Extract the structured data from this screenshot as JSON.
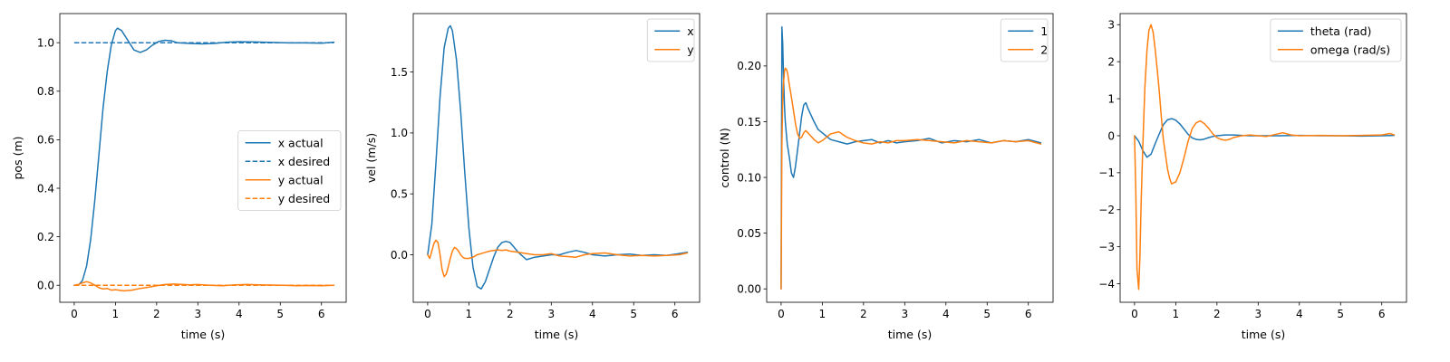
{
  "chart_data": [
    {
      "type": "line",
      "xlabel": "time (s)",
      "ylabel": "pos (m)",
      "xlim": [
        -0.35,
        6.6
      ],
      "ylim": [
        -0.07,
        1.12
      ],
      "xticks": [
        0,
        1,
        2,
        3,
        4,
        5,
        6
      ],
      "yticks": [
        0.0,
        0.2,
        0.4,
        0.6,
        0.8,
        1.0
      ],
      "ytick_labels": [
        "0.0",
        "0.2",
        "0.4",
        "0.6",
        "0.8",
        "1.0"
      ],
      "legend": "center-right",
      "series": [
        {
          "name": "x actual",
          "color": "#1f77b4",
          "dash": "solid",
          "x": [
            0,
            0.1,
            0.2,
            0.3,
            0.4,
            0.5,
            0.6,
            0.7,
            0.8,
            0.9,
            1.0,
            1.05,
            1.15,
            1.3,
            1.45,
            1.6,
            1.75,
            1.9,
            2.05,
            2.2,
            2.35,
            2.5,
            2.8,
            3.1,
            3.4,
            3.7,
            4.0,
            4.4,
            4.8,
            5.2,
            5.6,
            6.0,
            6.3
          ],
          "y": [
            0.0,
            0.0,
            0.02,
            0.08,
            0.19,
            0.35,
            0.54,
            0.73,
            0.88,
            0.99,
            1.05,
            1.06,
            1.05,
            1.01,
            0.97,
            0.96,
            0.97,
            0.99,
            1.005,
            1.01,
            1.008,
            1.0,
            0.997,
            0.995,
            0.997,
            1.002,
            1.004,
            1.003,
            1.001,
            0.999,
            0.999,
            0.998,
            1.002
          ]
        },
        {
          "name": "x desired",
          "color": "#1f77b4",
          "dash": "dashed",
          "x": [
            0,
            6.3
          ],
          "y": [
            1.0,
            1.0
          ]
        },
        {
          "name": "y actual",
          "color": "#ff7f0e",
          "dash": "solid",
          "x": [
            0,
            0.1,
            0.2,
            0.3,
            0.4,
            0.5,
            0.6,
            0.7,
            0.8,
            0.9,
            1.0,
            1.2,
            1.4,
            1.6,
            1.8,
            2.0,
            2.2,
            2.4,
            2.6,
            2.8,
            3.0,
            3.3,
            3.6,
            3.9,
            4.2,
            4.5,
            4.8,
            5.1,
            5.4,
            5.7,
            6.0,
            6.3
          ],
          "y": [
            0.0,
            0.003,
            0.01,
            0.015,
            0.01,
            0.0,
            -0.01,
            -0.015,
            -0.013,
            -0.02,
            -0.018,
            -0.023,
            -0.02,
            -0.013,
            -0.008,
            -0.002,
            0.003,
            0.005,
            0.004,
            0.002,
            0.003,
            0.0,
            -0.002,
            0.002,
            0.003,
            0.002,
            0.001,
            0.0,
            -0.002,
            -0.001,
            -0.002,
            0.0
          ]
        },
        {
          "name": "y desired",
          "color": "#ff7f0e",
          "dash": "dashed",
          "x": [
            0,
            6.3
          ],
          "y": [
            0.0,
            0.0
          ]
        }
      ]
    },
    {
      "type": "line",
      "xlabel": "time (s)",
      "ylabel": "vel (m/s)",
      "xlim": [
        -0.35,
        6.6
      ],
      "ylim": [
        -0.39,
        1.98
      ],
      "xticks": [
        0,
        1,
        2,
        3,
        4,
        5,
        6
      ],
      "yticks": [
        0.0,
        0.5,
        1.0,
        1.5
      ],
      "ytick_labels": [
        "0.0",
        "0.5",
        "1.0",
        "1.5"
      ],
      "legend": "top-right",
      "series": [
        {
          "name": "x",
          "color": "#1f77b4",
          "dash": "solid",
          "x": [
            0,
            0.1,
            0.2,
            0.3,
            0.4,
            0.5,
            0.55,
            0.6,
            0.7,
            0.8,
            0.9,
            1.0,
            1.1,
            1.2,
            1.3,
            1.4,
            1.5,
            1.6,
            1.7,
            1.8,
            1.9,
            2.0,
            2.1,
            2.2,
            2.4,
            2.6,
            2.8,
            3.0,
            3.2,
            3.4,
            3.6,
            3.8,
            4.0,
            4.3,
            4.6,
            4.9,
            5.2,
            5.5,
            5.8,
            6.1,
            6.3
          ],
          "y": [
            0.0,
            0.25,
            0.75,
            1.3,
            1.7,
            1.86,
            1.88,
            1.84,
            1.6,
            1.18,
            0.68,
            0.22,
            -0.1,
            -0.26,
            -0.28,
            -0.22,
            -0.12,
            -0.02,
            0.06,
            0.1,
            0.11,
            0.1,
            0.06,
            0.02,
            -0.04,
            -0.02,
            -0.01,
            0.0,
            0.0,
            0.02,
            0.035,
            0.02,
            0.0,
            -0.01,
            0.0,
            0.005,
            -0.005,
            0.0,
            -0.005,
            0.01,
            0.02
          ]
        },
        {
          "name": "y",
          "color": "#ff7f0e",
          "dash": "solid",
          "x": [
            0,
            0.05,
            0.1,
            0.15,
            0.2,
            0.25,
            0.3,
            0.35,
            0.4,
            0.45,
            0.5,
            0.55,
            0.6,
            0.65,
            0.7,
            0.75,
            0.8,
            0.85,
            0.9,
            1.0,
            1.1,
            1.2,
            1.3,
            1.4,
            1.5,
            1.6,
            1.7,
            1.8,
            1.9,
            2.0,
            2.2,
            2.4,
            2.6,
            2.8,
            3.0,
            3.2,
            3.4,
            3.6,
            3.8,
            4.0,
            4.3,
            4.6,
            4.9,
            5.2,
            5.5,
            5.8,
            6.1,
            6.3
          ],
          "y": [
            0.0,
            -0.03,
            0.03,
            0.09,
            0.12,
            0.1,
            0.0,
            -0.12,
            -0.18,
            -0.16,
            -0.1,
            -0.03,
            0.03,
            0.06,
            0.05,
            0.03,
            0.0,
            -0.02,
            -0.03,
            -0.03,
            -0.02,
            0.0,
            0.01,
            0.02,
            0.03,
            0.035,
            0.04,
            0.035,
            0.04,
            0.03,
            0.02,
            0.01,
            0.0,
            0.0,
            0.01,
            -0.01,
            -0.015,
            -0.02,
            0.0,
            0.01,
            0.015,
            0.0,
            -0.01,
            -0.005,
            -0.01,
            -0.005,
            0.0,
            0.015
          ]
        }
      ]
    },
    {
      "type": "line",
      "xlabel": "time (s)",
      "ylabel": "control (N)",
      "xlim": [
        -0.35,
        6.6
      ],
      "ylim": [
        -0.012,
        0.247
      ],
      "xticks": [
        0,
        1,
        2,
        3,
        4,
        5,
        6
      ],
      "yticks": [
        0.0,
        0.05,
        0.1,
        0.15,
        0.2
      ],
      "ytick_labels": [
        "0.00",
        "0.05",
        "0.10",
        "0.15",
        "0.20"
      ],
      "legend": "top-right",
      "series": [
        {
          "name": "1",
          "color": "#1f77b4",
          "dash": "solid",
          "x": [
            0,
            0.02,
            0.04,
            0.06,
            0.08,
            0.1,
            0.15,
            0.2,
            0.25,
            0.3,
            0.35,
            0.4,
            0.45,
            0.5,
            0.55,
            0.6,
            0.65,
            0.7,
            0.8,
            0.9,
            1.0,
            1.1,
            1.2,
            1.4,
            1.6,
            1.8,
            2.0,
            2.2,
            2.4,
            2.6,
            2.8,
            3.0,
            3.3,
            3.6,
            3.9,
            4.2,
            4.5,
            4.8,
            5.1,
            5.4,
            5.7,
            6.0,
            6.3
          ],
          "y": [
            0.0,
            0.235,
            0.22,
            0.19,
            0.165,
            0.15,
            0.13,
            0.118,
            0.104,
            0.1,
            0.11,
            0.125,
            0.14,
            0.155,
            0.165,
            0.167,
            0.162,
            0.158,
            0.15,
            0.143,
            0.14,
            0.137,
            0.134,
            0.132,
            0.13,
            0.132,
            0.133,
            0.134,
            0.131,
            0.133,
            0.131,
            0.132,
            0.133,
            0.135,
            0.131,
            0.133,
            0.132,
            0.134,
            0.131,
            0.133,
            0.132,
            0.134,
            0.131
          ]
        },
        {
          "name": "2",
          "color": "#ff7f0e",
          "dash": "solid",
          "x": [
            0,
            0.02,
            0.04,
            0.06,
            0.08,
            0.1,
            0.13,
            0.16,
            0.2,
            0.25,
            0.3,
            0.35,
            0.4,
            0.45,
            0.5,
            0.55,
            0.6,
            0.7,
            0.8,
            0.9,
            1.0,
            1.1,
            1.2,
            1.3,
            1.4,
            1.6,
            1.8,
            2.0,
            2.2,
            2.4,
            2.6,
            2.8,
            3.0,
            3.3,
            3.6,
            3.9,
            4.2,
            4.5,
            4.8,
            5.1,
            5.4,
            5.7,
            6.0,
            6.3
          ],
          "y": [
            0.0,
            0.13,
            0.17,
            0.185,
            0.195,
            0.198,
            0.197,
            0.193,
            0.183,
            0.172,
            0.16,
            0.148,
            0.139,
            0.135,
            0.136,
            0.14,
            0.142,
            0.138,
            0.134,
            0.131,
            0.133,
            0.136,
            0.139,
            0.14,
            0.141,
            0.136,
            0.133,
            0.131,
            0.13,
            0.132,
            0.131,
            0.133,
            0.133,
            0.134,
            0.133,
            0.132,
            0.131,
            0.133,
            0.132,
            0.131,
            0.133,
            0.132,
            0.133,
            0.13
          ]
        }
      ]
    },
    {
      "type": "line",
      "xlabel": "time (s)",
      "ylabel": "",
      "xlim": [
        -0.35,
        6.6
      ],
      "ylim": [
        -4.5,
        3.3
      ],
      "xticks": [
        0,
        1,
        2,
        3,
        4,
        5,
        6
      ],
      "yticks": [
        -4,
        -3,
        -2,
        -1,
        0,
        1,
        2,
        3
      ],
      "ytick_labels": [
        "−4",
        "−3",
        "−2",
        "−1",
        "0",
        "1",
        "2",
        "3"
      ],
      "legend": "top-right",
      "series": [
        {
          "name": "theta (rad)",
          "color": "#1f77b4",
          "dash": "solid",
          "x": [
            0,
            0.1,
            0.2,
            0.3,
            0.4,
            0.5,
            0.6,
            0.7,
            0.8,
            0.9,
            1.0,
            1.1,
            1.2,
            1.3,
            1.4,
            1.5,
            1.6,
            1.7,
            1.8,
            1.9,
            2.0,
            2.2,
            2.4,
            2.6,
            2.8,
            3.0,
            3.5,
            4.0,
            4.5,
            5.0,
            5.5,
            6.0,
            6.3
          ],
          "y": [
            0.0,
            -0.15,
            -0.4,
            -0.58,
            -0.5,
            -0.22,
            0.05,
            0.3,
            0.43,
            0.46,
            0.42,
            0.32,
            0.18,
            0.04,
            -0.06,
            -0.1,
            -0.11,
            -0.09,
            -0.05,
            -0.02,
            0.0,
            0.02,
            0.02,
            0.01,
            0.0,
            0.0,
            0.0,
            0.01,
            0.0,
            0.0,
            -0.01,
            0.0,
            0.01
          ]
        },
        {
          "name": "omega (rad/s)",
          "color": "#ff7f0e",
          "dash": "solid",
          "x": [
            0,
            0.03,
            0.06,
            0.1,
            0.13,
            0.16,
            0.2,
            0.25,
            0.3,
            0.35,
            0.4,
            0.45,
            0.5,
            0.55,
            0.6,
            0.65,
            0.7,
            0.75,
            0.8,
            0.85,
            0.9,
            1.0,
            1.1,
            1.2,
            1.3,
            1.4,
            1.5,
            1.6,
            1.7,
            1.8,
            1.9,
            2.0,
            2.1,
            2.2,
            2.3,
            2.4,
            2.6,
            2.8,
            3.0,
            3.2,
            3.4,
            3.6,
            3.8,
            4.0,
            4.5,
            5.0,
            5.5,
            6.0,
            6.2,
            6.3
          ],
          "y": [
            0.0,
            -1.5,
            -3.6,
            -4.15,
            -3.3,
            -1.8,
            -0.3,
            1.3,
            2.3,
            2.85,
            3.0,
            2.8,
            2.35,
            1.8,
            1.2,
            0.5,
            -0.1,
            -0.5,
            -0.9,
            -1.15,
            -1.3,
            -1.25,
            -1.0,
            -0.6,
            -0.15,
            0.2,
            0.35,
            0.4,
            0.32,
            0.2,
            0.05,
            -0.05,
            -0.1,
            -0.12,
            -0.1,
            -0.05,
            0.0,
            0.02,
            0.0,
            -0.02,
            0.03,
            0.08,
            0.02,
            0.0,
            0.01,
            0.0,
            0.01,
            0.02,
            0.06,
            0.02
          ]
        }
      ]
    }
  ]
}
